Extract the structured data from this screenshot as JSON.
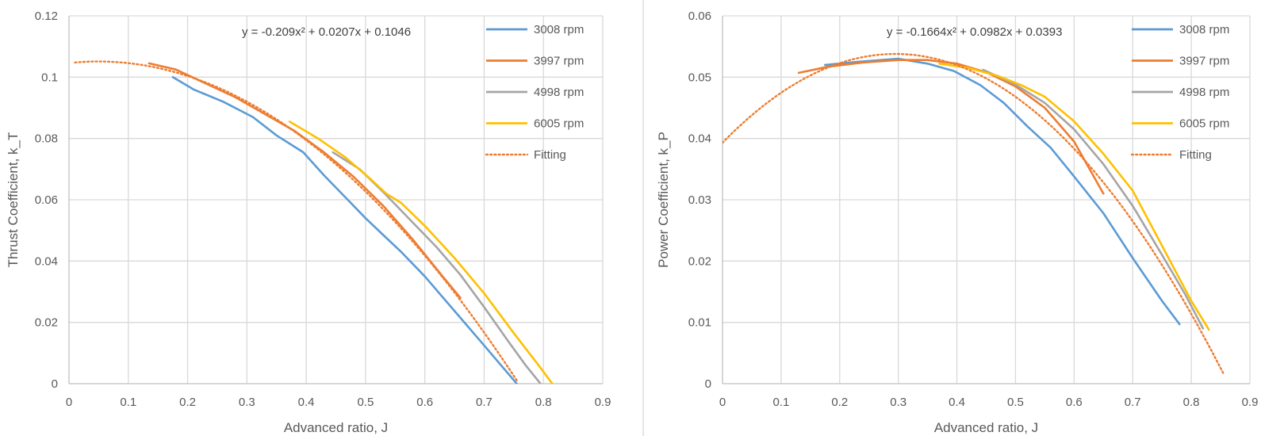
{
  "chart_data": [
    {
      "type": "line",
      "title": "",
      "xlabel": "Advanced ratio, J",
      "ylabel": "Thrust Coefficient, k_T",
      "xlim": [
        0,
        0.9
      ],
      "ylim": [
        0,
        0.12
      ],
      "xticks": [
        0,
        0.1,
        0.2,
        0.3,
        0.4,
        0.5,
        0.6,
        0.7,
        0.8,
        0.9
      ],
      "yticks": [
        0,
        0.02,
        0.04,
        0.06,
        0.08,
        0.1,
        0.12
      ],
      "xtick_labels": [
        "0",
        "0.1",
        "0.2",
        "0.3",
        "0.4",
        "0.5",
        "0.6",
        "0.7",
        "0.8",
        "0.9"
      ],
      "ytick_labels": [
        "0",
        "0.02",
        "0.04",
        "0.06",
        "0.08",
        "0.1",
        "0.12"
      ],
      "equation": "y = -0.209x² + 0.0207x + 0.1046",
      "legend_position": "top-right",
      "series": [
        {
          "name": "3008 rpm",
          "color": "#5b9bd5",
          "style": "solid",
          "x": [
            0.175,
            0.21,
            0.26,
            0.31,
            0.35,
            0.395,
            0.43,
            0.47,
            0.5,
            0.53,
            0.56,
            0.6,
            0.66,
            0.7,
            0.755
          ],
          "y": [
            0.1,
            0.096,
            0.092,
            0.087,
            0.081,
            0.0755,
            0.068,
            0.06,
            0.054,
            0.0485,
            0.043,
            0.035,
            0.0215,
            0.0125,
            0.0
          ]
        },
        {
          "name": "3997 rpm",
          "color": "#ed7d31",
          "style": "solid",
          "x": [
            0.135,
            0.18,
            0.23,
            0.28,
            0.33,
            0.38,
            0.43,
            0.48,
            0.53,
            0.58,
            0.63,
            0.66
          ],
          "y": [
            0.1045,
            0.1025,
            0.098,
            0.0935,
            0.088,
            0.0825,
            0.0755,
            0.0675,
            0.058,
            0.047,
            0.035,
            0.028
          ]
        },
        {
          "name": "4998 rpm",
          "color": "#a5a5a5",
          "style": "solid",
          "x": [
            0.445,
            0.49,
            0.53,
            0.575,
            0.62,
            0.66,
            0.7,
            0.74,
            0.77,
            0.795
          ],
          "y": [
            0.0755,
            0.07,
            0.0625,
            0.0535,
            0.0445,
            0.0355,
            0.025,
            0.014,
            0.006,
            0.0
          ]
        },
        {
          "name": "6005 rpm",
          "color": "#ffc000",
          "style": "solid",
          "x": [
            0.372,
            0.42,
            0.465,
            0.51,
            0.535,
            0.56,
            0.6,
            0.65,
            0.7,
            0.75,
            0.79,
            0.815
          ],
          "y": [
            0.0855,
            0.08,
            0.074,
            0.0665,
            0.062,
            0.059,
            0.0515,
            0.041,
            0.0295,
            0.0165,
            0.0065,
            0.0
          ]
        },
        {
          "name": "Fitting",
          "color": "#ed7d31",
          "style": "dotted",
          "fit_coefficients": [
            -0.209,
            0.0207,
            0.1046
          ],
          "x_range": [
            0.01,
            0.755
          ]
        }
      ]
    },
    {
      "type": "line",
      "title": "",
      "xlabel": "Advanced ratio, J",
      "ylabel": "Power Coefficient, k_P",
      "xlim": [
        0,
        0.9
      ],
      "ylim": [
        0,
        0.06
      ],
      "xticks": [
        0,
        0.1,
        0.2,
        0.3,
        0.4,
        0.5,
        0.6,
        0.7,
        0.8,
        0.9
      ],
      "yticks": [
        0,
        0.01,
        0.02,
        0.03,
        0.04,
        0.05,
        0.06
      ],
      "xtick_labels": [
        "0",
        "0.1",
        "0.2",
        "0.3",
        "0.4",
        "0.5",
        "0.6",
        "0.7",
        "0.8",
        "0.9"
      ],
      "ytick_labels": [
        "0",
        "0.01",
        "0.02",
        "0.03",
        "0.04",
        "0.05",
        "0.06"
      ],
      "equation": "y = -0.1664x² + 0.0982x + 0.0393",
      "legend_position": "top-right",
      "series": [
        {
          "name": "3008 rpm",
          "color": "#5b9bd5",
          "style": "solid",
          "x": [
            0.175,
            0.23,
            0.3,
            0.35,
            0.395,
            0.44,
            0.48,
            0.52,
            0.56,
            0.6,
            0.65,
            0.7,
            0.75,
            0.78
          ],
          "y": [
            0.052,
            0.0525,
            0.053,
            0.0522,
            0.051,
            0.0487,
            0.0458,
            0.042,
            0.0385,
            0.0338,
            0.0278,
            0.0205,
            0.0135,
            0.0097
          ]
        },
        {
          "name": "3997 rpm",
          "color": "#ed7d31",
          "style": "solid",
          "x": [
            0.13,
            0.18,
            0.24,
            0.3,
            0.35,
            0.4,
            0.45,
            0.5,
            0.55,
            0.6,
            0.65
          ],
          "y": [
            0.0507,
            0.0517,
            0.0524,
            0.0528,
            0.0528,
            0.0522,
            0.0508,
            0.0485,
            0.045,
            0.0395,
            0.031
          ]
        },
        {
          "name": "4998 rpm",
          "color": "#a5a5a5",
          "style": "solid",
          "x": [
            0.445,
            0.5,
            0.55,
            0.6,
            0.65,
            0.7,
            0.75,
            0.79,
            0.82
          ],
          "y": [
            0.0512,
            0.0488,
            0.0458,
            0.0415,
            0.0358,
            0.029,
            0.021,
            0.0145,
            0.009
          ]
        },
        {
          "name": "6005 rpm",
          "color": "#ffc000",
          "style": "solid",
          "x": [
            0.37,
            0.42,
            0.47,
            0.51,
            0.55,
            0.6,
            0.65,
            0.7,
            0.75,
            0.8,
            0.83
          ],
          "y": [
            0.0522,
            0.0515,
            0.0502,
            0.0487,
            0.0468,
            0.0428,
            0.0375,
            0.0315,
            0.0225,
            0.0135,
            0.0088
          ]
        },
        {
          "name": "Fitting",
          "color": "#ed7d31",
          "style": "dotted",
          "fit_coefficients": [
            -0.1664,
            0.0982,
            0.0393
          ],
          "x_range": [
            0.0,
            0.855
          ]
        }
      ]
    }
  ]
}
